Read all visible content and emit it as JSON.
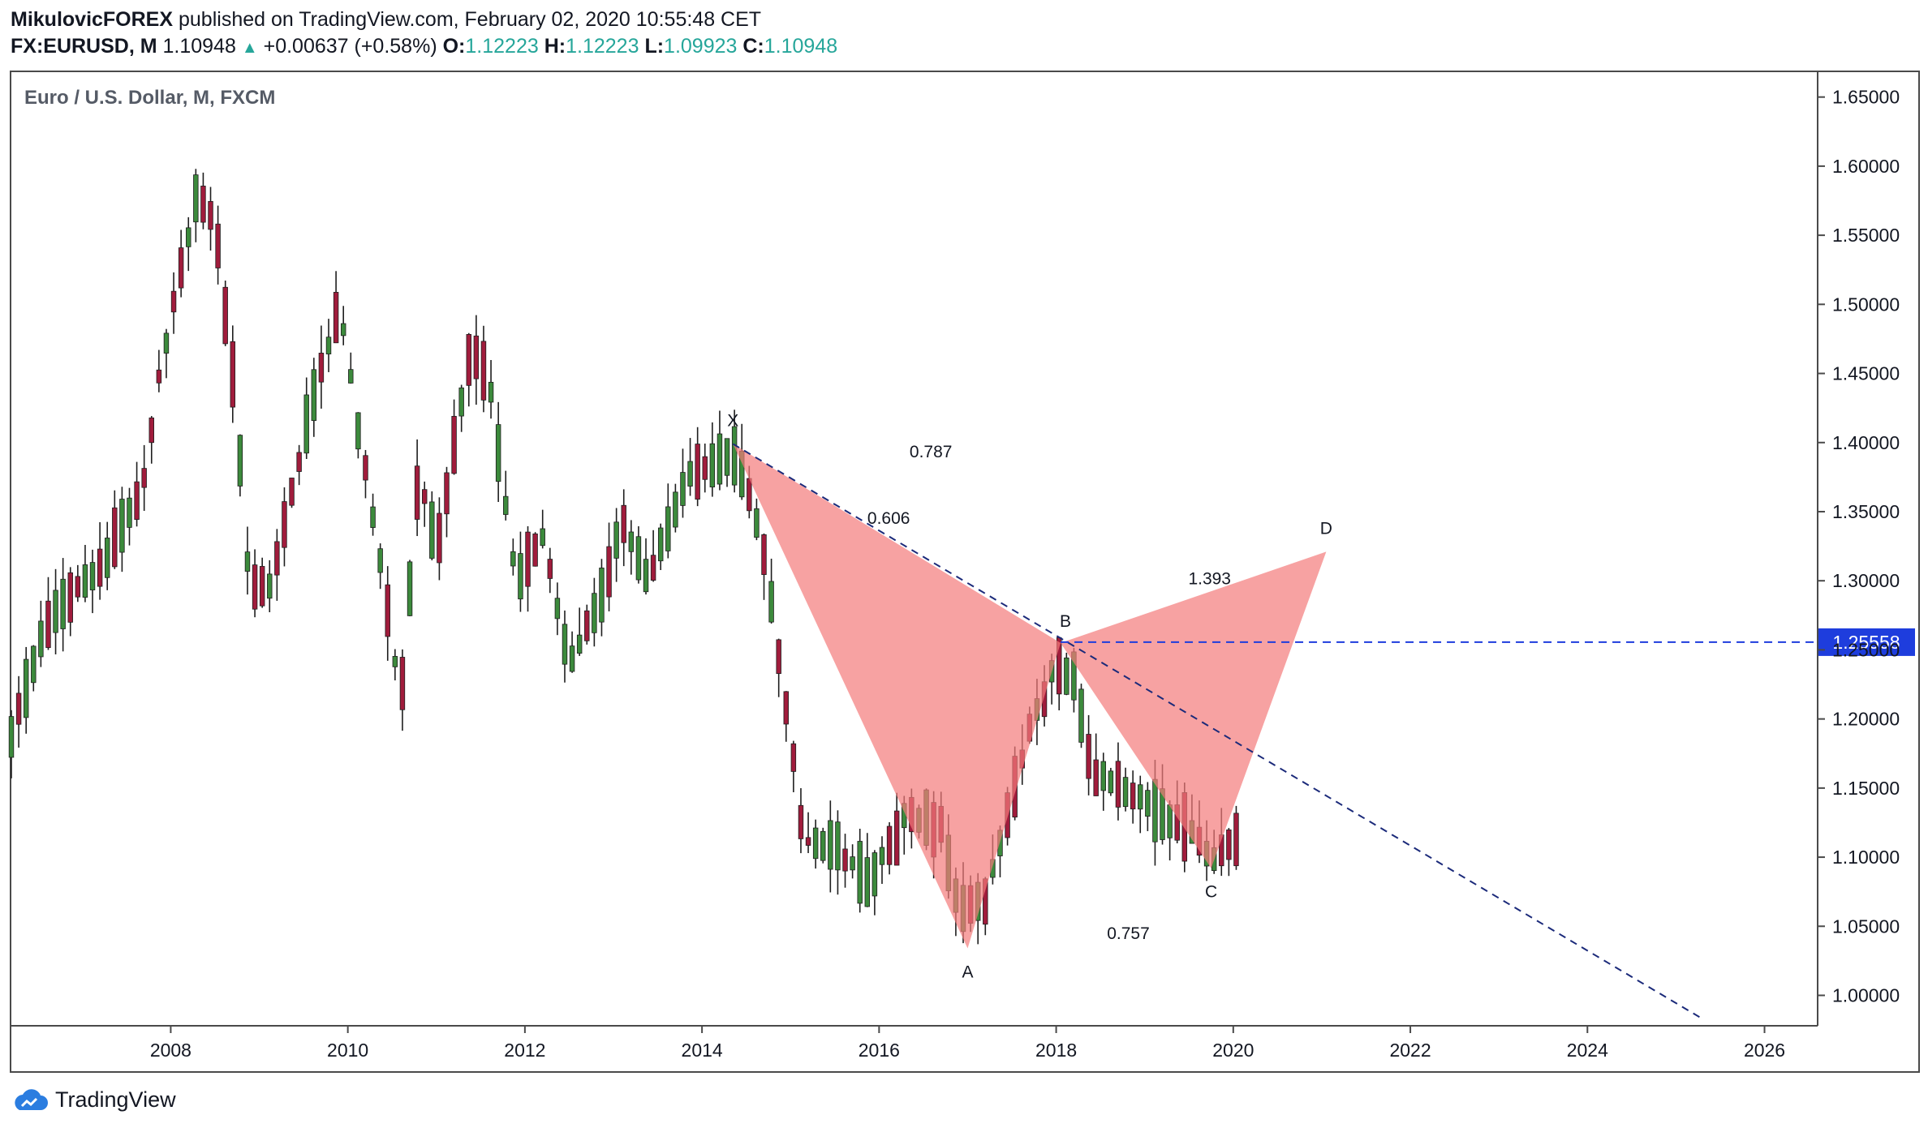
{
  "header": {
    "author": "MikulovicFOREX",
    "published_text": "published on TradingView.com, February 02, 2020 10:55:48 CET",
    "symbol": "FX:EURUSD, M",
    "last": "1.10948",
    "change": "+0.00637 (+0.58%)",
    "o_label": "O:",
    "o_value": "1.12223",
    "h_label": "H:",
    "h_value": "1.12223",
    "l_label": "L:",
    "l_value": "1.09923",
    "c_label": "C:",
    "c_value": "1.10948"
  },
  "footer": {
    "brand": "TradingView"
  },
  "colors": {
    "up_body": "#3c8a3c",
    "down_body": "#a01c3c",
    "wick": "#1e1e1e",
    "pattern_fill": "#f47a7a",
    "dashed_line": "#1b2a7a",
    "price_line": "#1e3ddd",
    "price_label_bg": "#1e3ddd",
    "accent_green": "#26a69a"
  },
  "chart_data": {
    "type": "candlestick",
    "title": "Euro / U.S. Dollar, M, FXCM",
    "ylim": [
      0.978,
      1.668
    ],
    "xlim": [
      2006.2,
      2026.6
    ],
    "y_ticks": [
      "1.00000",
      "1.05000",
      "1.10000",
      "1.15000",
      "1.20000",
      "1.25000",
      "1.30000",
      "1.35000",
      "1.40000",
      "1.45000",
      "1.50000",
      "1.55000",
      "1.60000",
      "1.65000"
    ],
    "x_ticks": [
      "2008",
      "2010",
      "2012",
      "2014",
      "2016",
      "2018",
      "2020",
      "2022",
      "2024",
      "2026"
    ],
    "current_price_label": "1.25558",
    "current_price_value": 1.25558,
    "pattern_points": {
      "X": {
        "label": "X",
        "x": 2014.35,
        "y": 1.399
      },
      "A": {
        "label": "A",
        "x": 2017.0,
        "y": 1.034
      },
      "B": {
        "label": "B",
        "x": 2018.05,
        "y": 1.255
      },
      "C": {
        "label": "C",
        "x": 2019.75,
        "y": 1.092
      },
      "D": {
        "label": "D",
        "x": 2021.05,
        "y": 1.321
      }
    },
    "ratios": [
      "0.606",
      "0.787",
      "1.393",
      "0.757"
    ],
    "trendline": {
      "start": {
        "x": 2014.35,
        "y": 1.399
      },
      "end": {
        "x": 2025.3,
        "y": 0.983
      }
    },
    "anchors": [
      [
        2006.2,
        1.19
      ],
      [
        2006.6,
        1.27
      ],
      [
        2006.9,
        1.29
      ],
      [
        2007.3,
        1.32
      ],
      [
        2007.7,
        1.37
      ],
      [
        2007.9,
        1.46
      ],
      [
        2008.3,
        1.58
      ],
      [
        2008.5,
        1.56
      ],
      [
        2008.7,
        1.45
      ],
      [
        2008.9,
        1.29
      ],
      [
        2009.15,
        1.3
      ],
      [
        2009.6,
        1.43
      ],
      [
        2009.9,
        1.5
      ],
      [
        2010.4,
        1.3
      ],
      [
        2010.6,
        1.21
      ],
      [
        2010.8,
        1.38
      ],
      [
        2011.0,
        1.32
      ],
      [
        2011.4,
        1.47
      ],
      [
        2011.6,
        1.44
      ],
      [
        2011.9,
        1.3
      ],
      [
        2012.2,
        1.33
      ],
      [
        2012.5,
        1.24
      ],
      [
        2012.8,
        1.28
      ],
      [
        2013.1,
        1.34
      ],
      [
        2013.4,
        1.3
      ],
      [
        2013.8,
        1.37
      ],
      [
        2014.2,
        1.39
      ],
      [
        2014.4,
        1.39
      ],
      [
        2014.7,
        1.32
      ],
      [
        2014.95,
        1.21
      ],
      [
        2015.15,
        1.11
      ],
      [
        2015.5,
        1.11
      ],
      [
        2015.9,
        1.08
      ],
      [
        2016.3,
        1.13
      ],
      [
        2016.7,
        1.12
      ],
      [
        2016.9,
        1.06
      ],
      [
        2017.2,
        1.07
      ],
      [
        2017.4,
        1.12
      ],
      [
        2017.7,
        1.19
      ],
      [
        2018.0,
        1.24
      ],
      [
        2018.2,
        1.23
      ],
      [
        2018.4,
        1.16
      ],
      [
        2018.8,
        1.15
      ],
      [
        2019.2,
        1.13
      ],
      [
        2019.5,
        1.12
      ],
      [
        2019.75,
        1.1
      ],
      [
        2020.0,
        1.11
      ]
    ]
  }
}
